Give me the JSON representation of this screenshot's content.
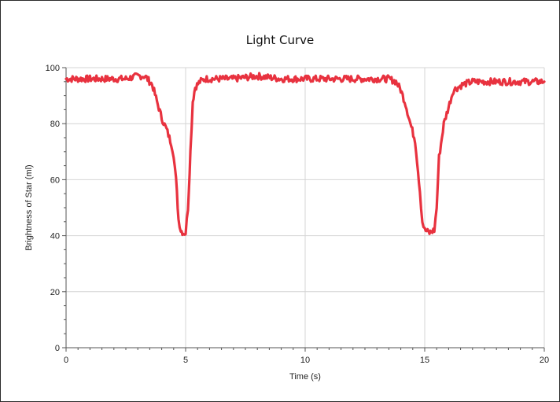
{
  "chart_data": {
    "type": "line",
    "title": "Light Curve",
    "xlabel": "Time (s)",
    "ylabel": "Brightness of Star (ml)",
    "xlim": [
      0,
      20
    ],
    "ylim": [
      0,
      100
    ],
    "xticks": [
      0,
      5,
      10,
      15,
      20
    ],
    "yticks": [
      0,
      20,
      40,
      60,
      80,
      100
    ],
    "grid": true,
    "line_color": "#e8323f",
    "series": [
      {
        "x": [
          0,
          0.5,
          1,
          1.5,
          2,
          2.5,
          3,
          3.3,
          3.6,
          3.8,
          4.0,
          4.2,
          4.4,
          4.5,
          4.6,
          4.7,
          4.8,
          4.9,
          5.0,
          5.1,
          5.2,
          5.3,
          5.4,
          5.6,
          5.8,
          6.0,
          7,
          8,
          9,
          10,
          11,
          12,
          13,
          13.5,
          13.8,
          14.0,
          14.2,
          14.4,
          14.6,
          14.8,
          14.9,
          15.0,
          15.2,
          15.4,
          15.5,
          15.6,
          15.8,
          16.0,
          16.2,
          16.4,
          16.6,
          17,
          18,
          19,
          20
        ],
        "y": [
          96,
          96,
          96,
          96,
          96,
          96,
          97,
          97,
          94,
          88,
          82,
          78,
          73,
          69,
          60,
          46,
          42,
          41,
          41,
          50,
          70,
          88,
          93,
          95,
          96,
          96,
          96,
          97,
          96,
          96,
          96,
          96,
          96,
          96,
          95,
          92,
          87,
          80,
          74,
          56,
          45,
          42,
          41,
          42,
          50,
          68,
          80,
          86,
          92,
          93,
          94,
          95,
          95,
          95,
          95
        ]
      }
    ]
  }
}
